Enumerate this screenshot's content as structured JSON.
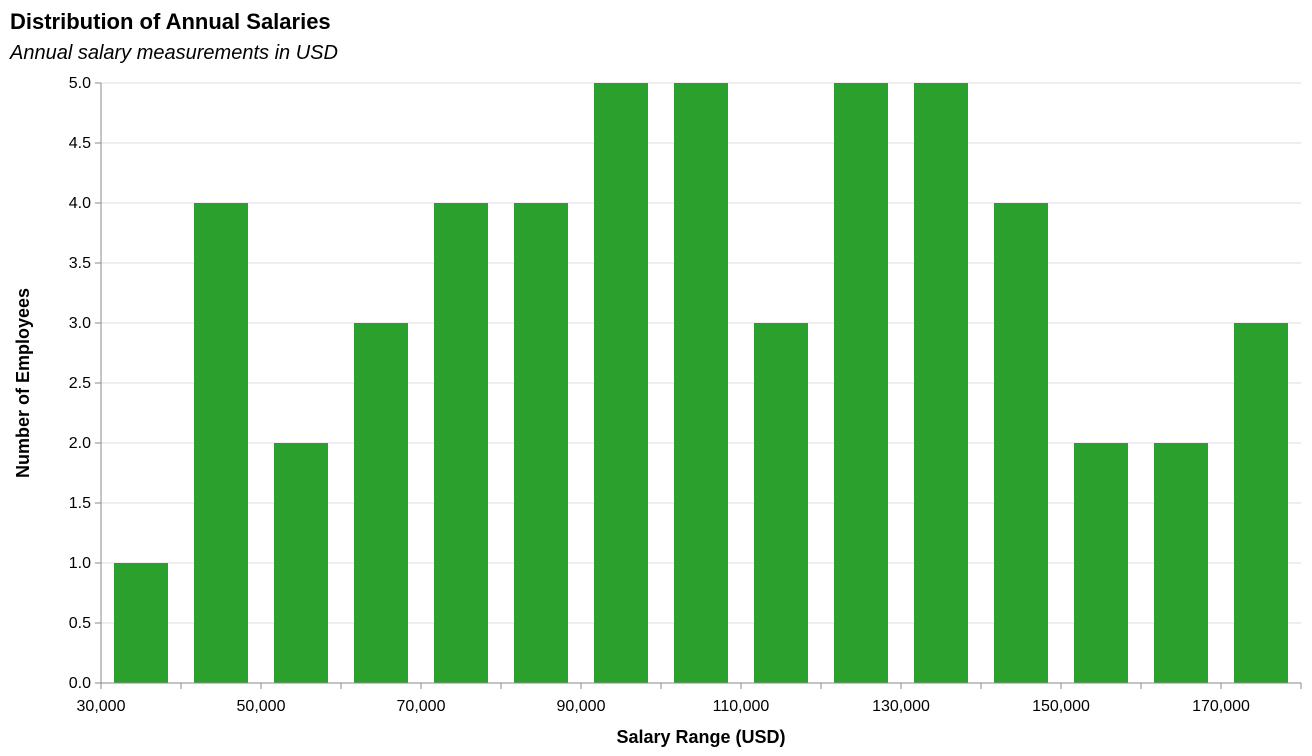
{
  "chart_data": {
    "type": "bar",
    "title": "Distribution of Annual Salaries",
    "subtitle": "Annual salary measurements in USD",
    "xlabel": "Salary Range (USD)",
    "ylabel": "Number of Employees",
    "xlim": [
      30000,
      180000
    ],
    "ylim": [
      0,
      5
    ],
    "bin_width": 10000,
    "bin_starts": [
      30000,
      40000,
      50000,
      60000,
      70000,
      80000,
      90000,
      100000,
      110000,
      120000,
      130000,
      140000,
      150000,
      160000,
      170000
    ],
    "values": [
      1,
      4,
      2,
      3,
      4,
      4,
      5,
      5,
      3,
      5,
      5,
      4,
      2,
      2,
      3
    ],
    "x_tick_values": [
      30000,
      50000,
      70000,
      90000,
      110000,
      130000,
      150000,
      170000
    ],
    "x_tick_labels": [
      "30,000",
      "50,000",
      "70,000",
      "90,000",
      "110,000",
      "130,000",
      "150,000",
      "170,000"
    ],
    "y_tick_values": [
      0,
      0.5,
      1,
      1.5,
      2,
      2.5,
      3,
      3.5,
      4,
      4.5,
      5
    ],
    "y_tick_labels": [
      "0.0",
      "0.5",
      "1.0",
      "1.5",
      "2.0",
      "2.5",
      "3.0",
      "3.5",
      "4.0",
      "4.5",
      "5.0"
    ],
    "grid": true,
    "colors": {
      "bar": "#2ca02c",
      "grid": "#dddddd",
      "axis": "#888888"
    }
  }
}
